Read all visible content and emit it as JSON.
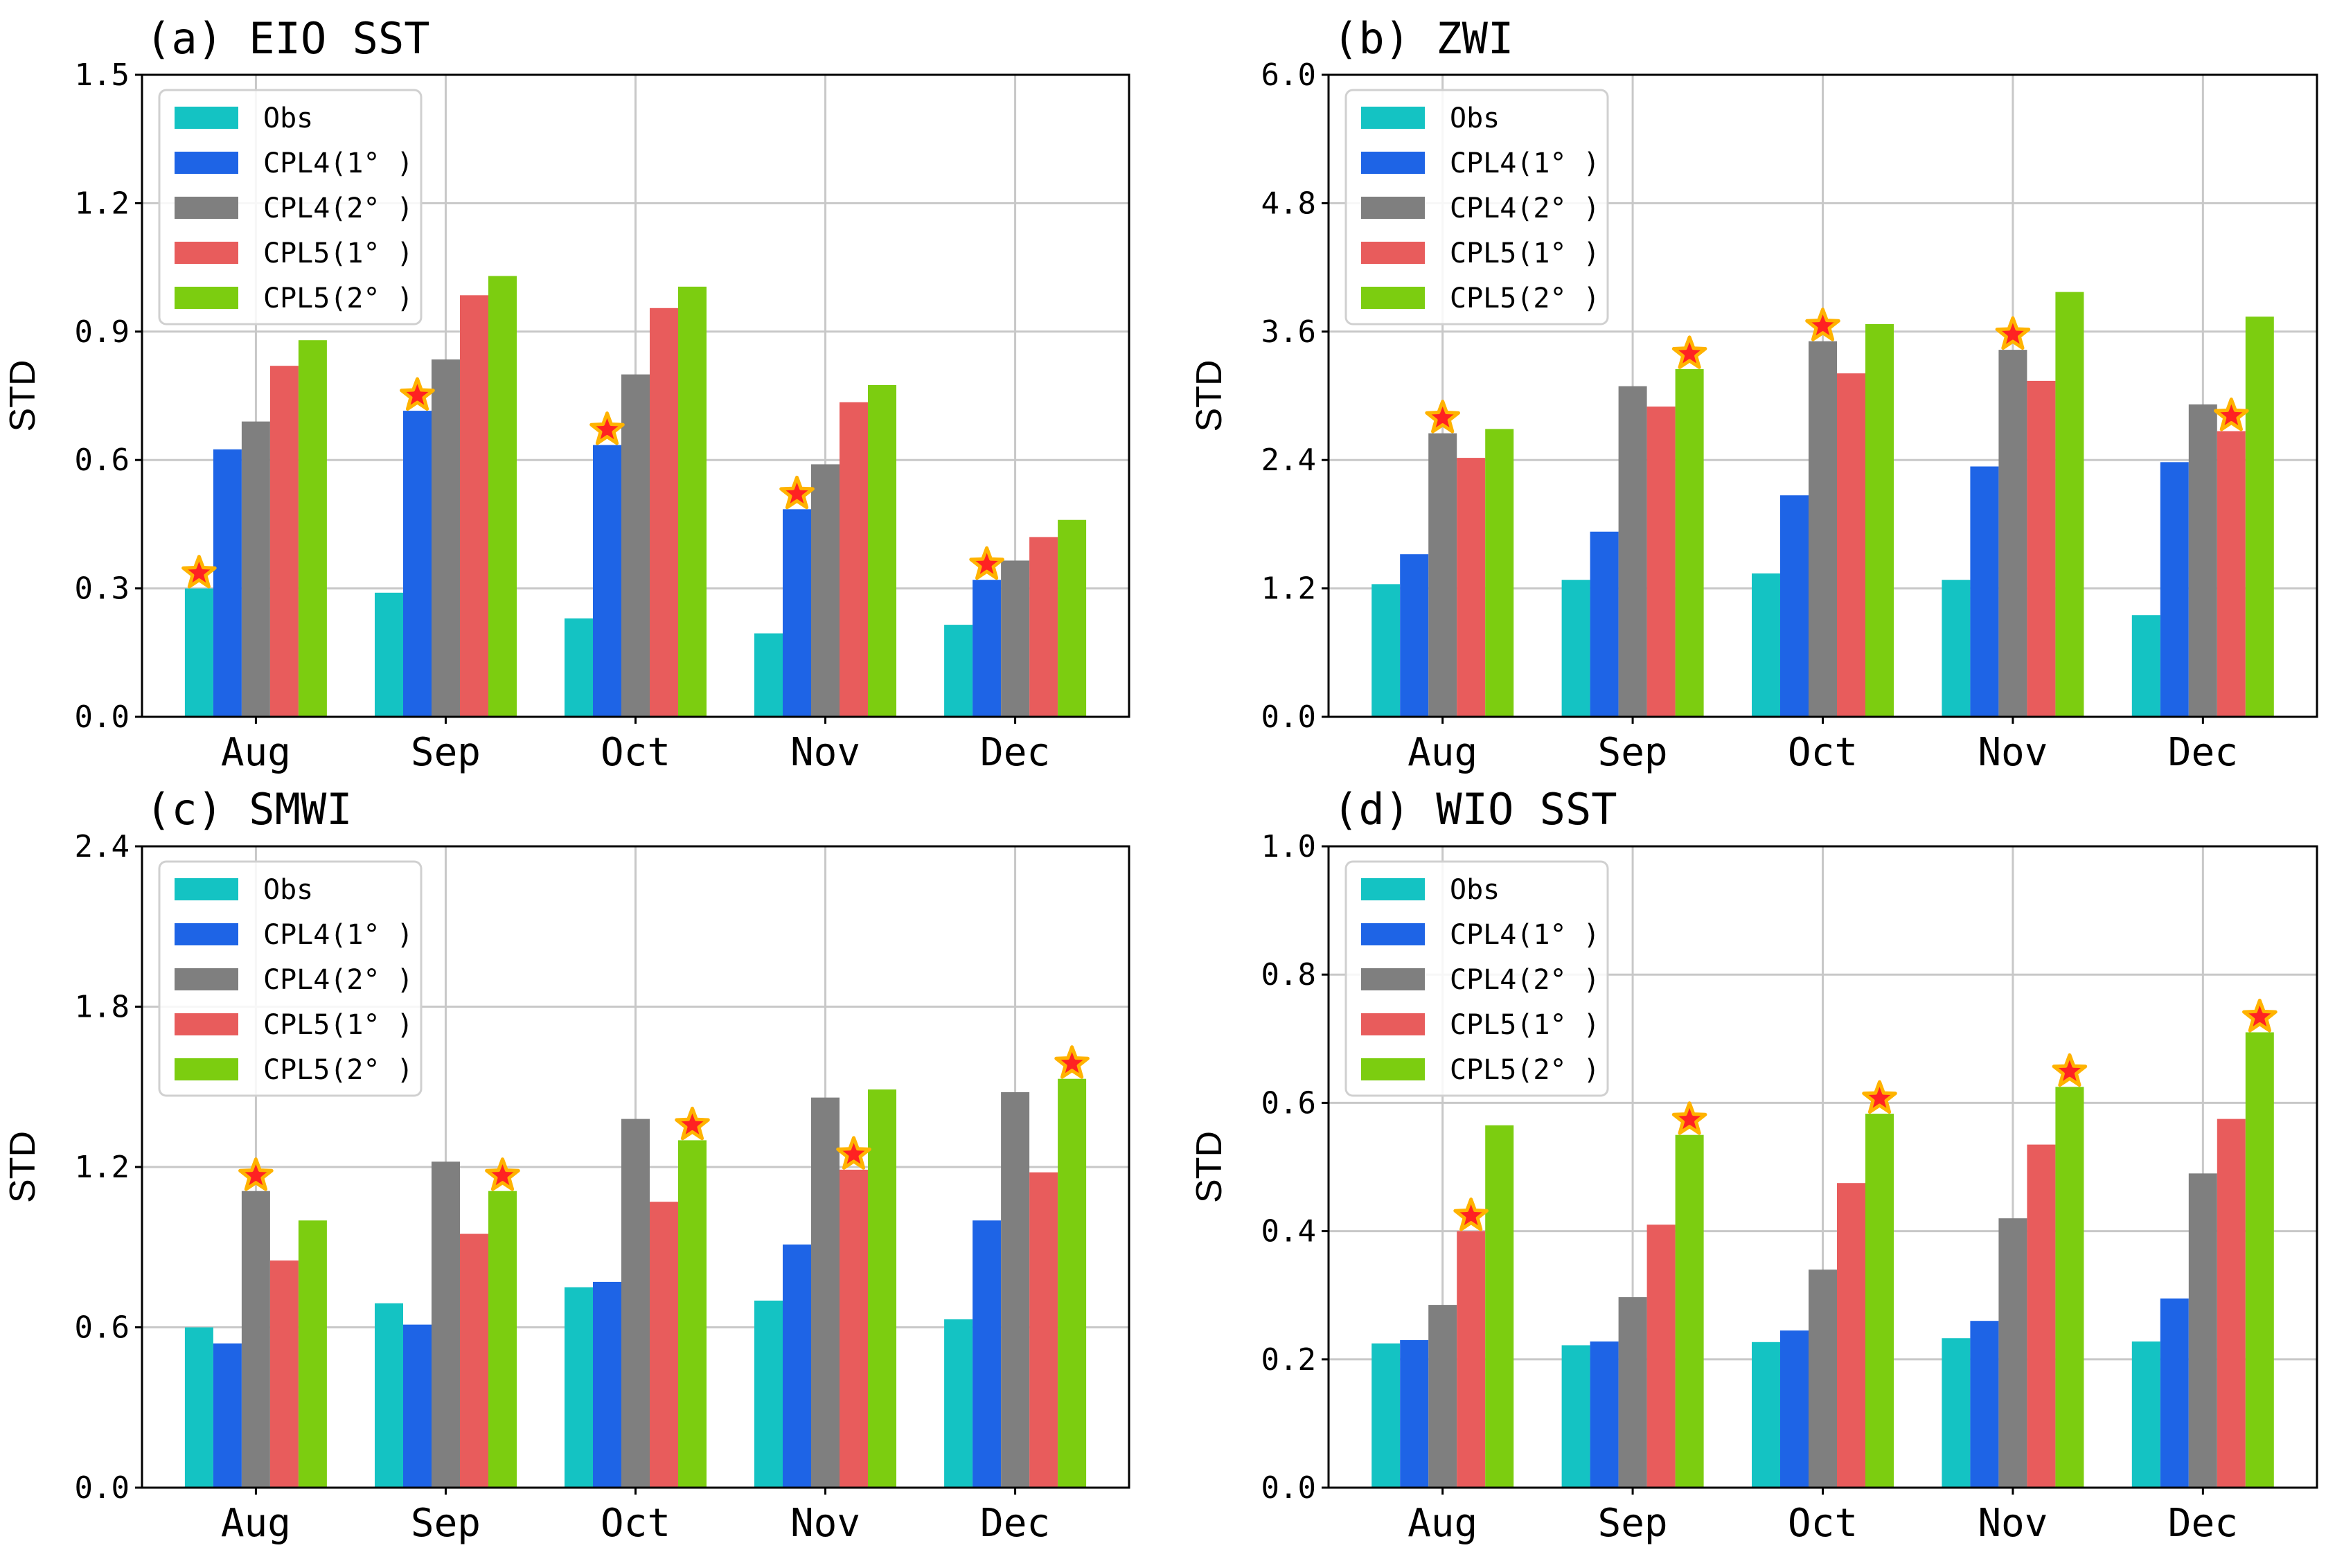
{
  "figure": {
    "type": "multi-panel grouped bar chart"
  },
  "colors": {
    "Obs": "#14c3c3",
    "CPL4 (1°)": "#1e64e6",
    "CPL4 (2°)": "#7f7f7f",
    "CPL5 (1°)": "#e85c5c",
    "CPL5 (2°)": "#7ccd10",
    "star_fill": "#ff2222",
    "star_edge": "#ffb300",
    "grid": "#c8c8c8"
  },
  "chart_data": [
    {
      "id": "a",
      "type": "bar",
      "title": "(a) EIO SST",
      "ylabel": "STD",
      "ylim": [
        0,
        1.5
      ],
      "yticks": [
        "0.0",
        "0.3",
        "0.6",
        "0.9",
        "1.2",
        "1.5"
      ],
      "categories": [
        "Aug",
        "Sep",
        "Oct",
        "Nov",
        "Dec"
      ],
      "grid": true,
      "legend": "upper-left",
      "series": [
        {
          "name": "Obs",
          "label": "Obs",
          "values": [
            0.3,
            0.29,
            0.23,
            0.195,
            0.215
          ]
        },
        {
          "name": "CPL4 (1°)",
          "label": "CPL4(1° )",
          "values": [
            0.625,
            0.715,
            0.635,
            0.485,
            0.32
          ]
        },
        {
          "name": "CPL4 (2°)",
          "label": "CPL4(2° )",
          "values": [
            0.69,
            0.835,
            0.8,
            0.59,
            0.365
          ]
        },
        {
          "name": "CPL5 (1°)",
          "label": "CPL5(1° )",
          "values": [
            0.82,
            0.985,
            0.955,
            0.735,
            0.42
          ]
        },
        {
          "name": "CPL5 (2°)",
          "label": "CPL5(2° )",
          "values": [
            0.88,
            1.03,
            1.005,
            0.775,
            0.46
          ]
        }
      ],
      "significant": [
        [
          0,
          0
        ],
        [
          1,
          1
        ],
        [
          1,
          2
        ],
        [
          1,
          3
        ],
        [
          1,
          4
        ]
      ]
    },
    {
      "id": "b",
      "type": "bar",
      "title": "(b) ZWI",
      "ylabel": "STD",
      "ylim": [
        0,
        6.0
      ],
      "yticks": [
        "0.0",
        "1.2",
        "2.4",
        "3.6",
        "4.8",
        "6.0"
      ],
      "categories": [
        "Aug",
        "Sep",
        "Oct",
        "Nov",
        "Dec"
      ],
      "grid": true,
      "legend": "upper-left",
      "series": [
        {
          "name": "Obs",
          "label": "Obs",
          "values": [
            1.24,
            1.28,
            1.34,
            1.28,
            0.95
          ]
        },
        {
          "name": "CPL4 (1°)",
          "label": "CPL4(1° )",
          "values": [
            1.52,
            1.73,
            2.07,
            2.34,
            2.38
          ]
        },
        {
          "name": "CPL4 (2°)",
          "label": "CPL4(2° )",
          "values": [
            2.65,
            3.09,
            3.51,
            3.43,
            2.92
          ]
        },
        {
          "name": "CPL5 (1°)",
          "label": "CPL5(1° )",
          "values": [
            2.42,
            2.9,
            3.21,
            3.14,
            2.67
          ]
        },
        {
          "name": "CPL5 (2°)",
          "label": "CPL5(2° )",
          "values": [
            2.69,
            3.25,
            3.67,
            3.97,
            3.74
          ]
        }
      ],
      "significant": [
        [
          2,
          0
        ],
        [
          2,
          2
        ],
        [
          2,
          3
        ],
        [
          3,
          4
        ],
        [
          4,
          1
        ]
      ]
    },
    {
      "id": "c",
      "type": "bar",
      "title": "(c) SMWI",
      "ylabel": "STD",
      "ylim": [
        0,
        2.4
      ],
      "yticks": [
        "0.0",
        "0.6",
        "1.2",
        "1.8",
        "2.4"
      ],
      "categories": [
        "Aug",
        "Sep",
        "Oct",
        "Nov",
        "Dec"
      ],
      "grid": true,
      "legend": "upper-left",
      "series": [
        {
          "name": "Obs",
          "label": "Obs",
          "values": [
            0.6,
            0.69,
            0.75,
            0.7,
            0.63
          ]
        },
        {
          "name": "CPL4 (1°)",
          "label": "CPL4(1° )",
          "values": [
            0.54,
            0.61,
            0.77,
            0.91,
            1.0
          ]
        },
        {
          "name": "CPL4 (2°)",
          "label": "CPL4(2° )",
          "values": [
            1.11,
            1.22,
            1.38,
            1.46,
            1.48
          ]
        },
        {
          "name": "CPL5 (1°)",
          "label": "CPL5(1° )",
          "values": [
            0.85,
            0.95,
            1.07,
            1.19,
            1.18
          ]
        },
        {
          "name": "CPL5 (2°)",
          "label": "CPL5(2° )",
          "values": [
            1.0,
            1.11,
            1.3,
            1.49,
            1.53
          ]
        }
      ],
      "significant": [
        [
          2,
          0
        ],
        [
          3,
          3
        ],
        [
          4,
          1
        ],
        [
          4,
          2
        ],
        [
          4,
          4
        ]
      ]
    },
    {
      "id": "d",
      "type": "bar",
      "title": "(d) WIO SST",
      "ylabel": "STD",
      "ylim": [
        0,
        1.0
      ],
      "yticks": [
        "0.0",
        "0.2",
        "0.4",
        "0.6",
        "0.8",
        "1.0"
      ],
      "categories": [
        "Aug",
        "Sep",
        "Oct",
        "Nov",
        "Dec"
      ],
      "grid": true,
      "legend": "upper-left",
      "series": [
        {
          "name": "Obs",
          "label": "Obs",
          "values": [
            0.225,
            0.222,
            0.227,
            0.233,
            0.228
          ]
        },
        {
          "name": "CPL4 (1°)",
          "label": "CPL4(1° )",
          "values": [
            0.23,
            0.228,
            0.245,
            0.26,
            0.295
          ]
        },
        {
          "name": "CPL4 (2°)",
          "label": "CPL4(2° )",
          "values": [
            0.285,
            0.297,
            0.34,
            0.42,
            0.49
          ]
        },
        {
          "name": "CPL5 (1°)",
          "label": "CPL5(1° )",
          "values": [
            0.4,
            0.41,
            0.475,
            0.535,
            0.575
          ]
        },
        {
          "name": "CPL5 (2°)",
          "label": "CPL5(2° )",
          "values": [
            0.565,
            0.55,
            0.583,
            0.625,
            0.71
          ]
        }
      ],
      "significant": [
        [
          3,
          0
        ],
        [
          4,
          1
        ],
        [
          4,
          2
        ],
        [
          4,
          3
        ],
        [
          4,
          4
        ]
      ]
    }
  ]
}
